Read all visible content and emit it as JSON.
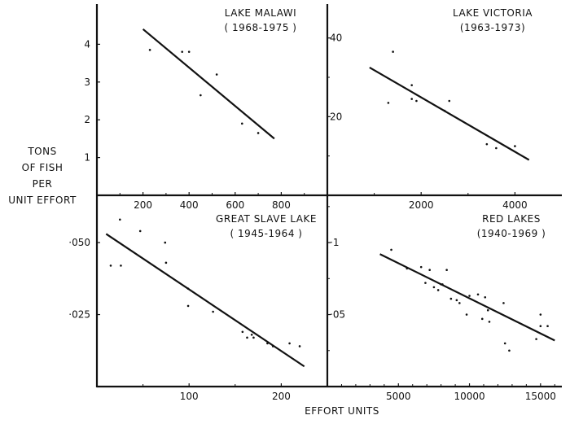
{
  "figure": {
    "y_axis_label_lines": [
      "TONS",
      "OF  FISH",
      "PER",
      "UNIT  EFFORT"
    ],
    "x_axis_label": "EFFORT  UNITS"
  },
  "chart_data": [
    {
      "type": "scatter",
      "title": "LAKE MALAWI",
      "subtitle": "( 1968-1975 )",
      "xlabel": "EFFORT UNITS",
      "ylabel": "TONS OF FISH PER UNIT EFFORT",
      "x_ticks": [
        200,
        400,
        600,
        800
      ],
      "y_ticks": [
        1,
        2,
        3,
        4
      ],
      "points": [
        [
          230,
          3.85
        ],
        [
          370,
          3.8
        ],
        [
          400,
          3.8
        ],
        [
          450,
          2.65
        ],
        [
          520,
          3.2
        ],
        [
          630,
          1.9
        ],
        [
          700,
          1.65
        ]
      ],
      "trend_line": [
        [
          200,
          4.4
        ],
        [
          770,
          1.5
        ]
      ]
    },
    {
      "type": "scatter",
      "title": "LAKE VICTORIA",
      "subtitle": "(1963-1973)",
      "xlabel": "EFFORT UNITS",
      "ylabel": "TONS OF FISH PER UNIT EFFORT",
      "x_ticks": [
        2000,
        4000
      ],
      "y_ticks": [
        20,
        40
      ],
      "points": [
        [
          1300,
          23.5
        ],
        [
          1400,
          36.5
        ],
        [
          1800,
          24.5
        ],
        [
          1800,
          28
        ],
        [
          1900,
          24
        ],
        [
          2500,
          21.5
        ],
        [
          2600,
          24
        ],
        [
          3400,
          13
        ],
        [
          3600,
          12
        ],
        [
          4000,
          12.5
        ]
      ],
      "trend_line": [
        [
          900,
          32.5
        ],
        [
          4300,
          9
        ]
      ]
    },
    {
      "type": "scatter",
      "title": "GREAT SLAVE LAKE",
      "subtitle": "( 1945-1964 )",
      "xlabel": "EFFORT UNITS",
      "ylabel": "TONS OF FISH PER UNIT EFFORT",
      "x_ticks": [
        100,
        200
      ],
      "y_ticks": [
        0.025,
        0.05
      ],
      "points": [
        [
          15,
          0.042
        ],
        [
          25,
          0.058
        ],
        [
          26,
          0.042
        ],
        [
          47,
          0.054
        ],
        [
          74,
          0.05
        ],
        [
          75,
          0.043
        ],
        [
          99,
          0.034
        ],
        [
          99,
          0.028
        ],
        [
          126,
          0.026
        ],
        [
          158,
          0.019
        ],
        [
          163,
          0.017
        ],
        [
          168,
          0.018
        ],
        [
          170,
          0.017
        ],
        [
          185,
          0.015
        ],
        [
          191,
          0.014
        ],
        [
          209,
          0.015
        ],
        [
          220,
          0.014
        ]
      ],
      "trend_line": [
        [
          10,
          0.053
        ],
        [
          225,
          0.007
        ]
      ]
    },
    {
      "type": "scatter",
      "title": "RED LAKES",
      "subtitle": "(1940-1969 )",
      "xlabel": "EFFORT UNITS",
      "ylabel": "TONS OF FISH PER UNIT EFFORT",
      "x_ticks": [
        5000,
        10000,
        15000
      ],
      "y_ticks": [
        0.05,
        0.1
      ],
      "points": [
        [
          4500,
          0.095
        ],
        [
          5600,
          0.082
        ],
        [
          6600,
          0.083
        ],
        [
          6900,
          0.072
        ],
        [
          7200,
          0.081
        ],
        [
          7500,
          0.069
        ],
        [
          7800,
          0.067
        ],
        [
          8000,
          0.071
        ],
        [
          8100,
          0.071
        ],
        [
          8400,
          0.081
        ],
        [
          8700,
          0.061
        ],
        [
          9100,
          0.06
        ],
        [
          9300,
          0.058
        ],
        [
          9800,
          0.05
        ],
        [
          10000,
          0.063
        ],
        [
          10600,
          0.064
        ],
        [
          10900,
          0.047
        ],
        [
          11100,
          0.062
        ],
        [
          11300,
          0.053
        ],
        [
          11400,
          0.045
        ],
        [
          12400,
          0.058
        ],
        [
          12500,
          0.03
        ],
        [
          12800,
          0.025
        ],
        [
          14700,
          0.033
        ],
        [
          15000,
          0.05
        ],
        [
          15000,
          0.042
        ],
        [
          15500,
          0.042
        ]
      ],
      "trend_line": [
        [
          3700,
          0.092
        ],
        [
          16000,
          0.032
        ]
      ]
    }
  ]
}
